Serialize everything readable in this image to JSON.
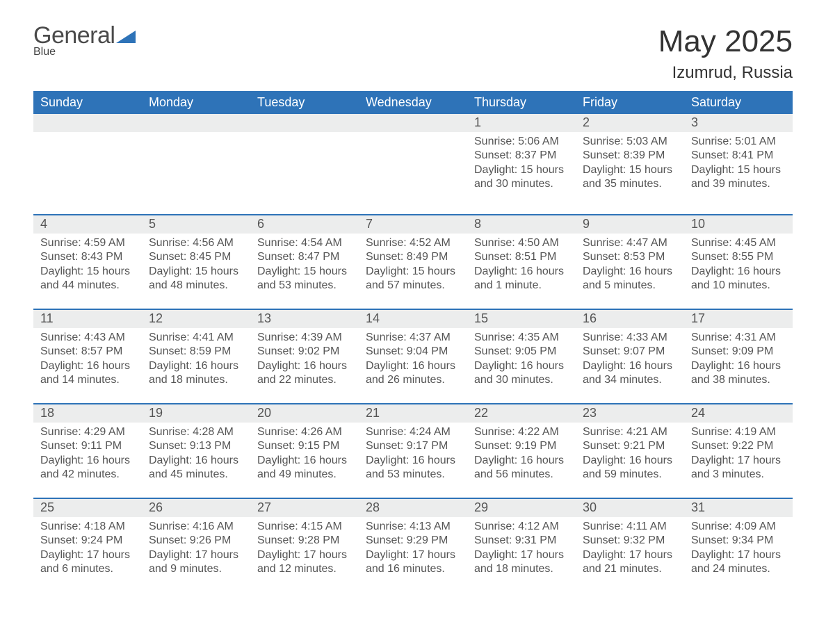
{
  "brand": {
    "general": "General",
    "blue": "Blue"
  },
  "title": "May 2025",
  "location": "Izumrud, Russia",
  "colors": {
    "header_bg": "#2e73b8",
    "header_text": "#ffffff",
    "daynum_bg": "#eceded",
    "body_text": "#555555",
    "page_bg": "#ffffff",
    "divider": "#2e73b8",
    "brand_blue": "#2e73b8",
    "brand_gray": "#4a4a4a"
  },
  "type": "table",
  "day_headers": [
    "Sunday",
    "Monday",
    "Tuesday",
    "Wednesday",
    "Thursday",
    "Friday",
    "Saturday"
  ],
  "weeks": [
    [
      {
        "n": "",
        "sr": "",
        "ss": "",
        "dl": ""
      },
      {
        "n": "",
        "sr": "",
        "ss": "",
        "dl": ""
      },
      {
        "n": "",
        "sr": "",
        "ss": "",
        "dl": ""
      },
      {
        "n": "",
        "sr": "",
        "ss": "",
        "dl": ""
      },
      {
        "n": "1",
        "sr": "Sunrise: 5:06 AM",
        "ss": "Sunset: 8:37 PM",
        "dl": "Daylight: 15 hours and 30 minutes."
      },
      {
        "n": "2",
        "sr": "Sunrise: 5:03 AM",
        "ss": "Sunset: 8:39 PM",
        "dl": "Daylight: 15 hours and 35 minutes."
      },
      {
        "n": "3",
        "sr": "Sunrise: 5:01 AM",
        "ss": "Sunset: 8:41 PM",
        "dl": "Daylight: 15 hours and 39 minutes."
      }
    ],
    [
      {
        "n": "4",
        "sr": "Sunrise: 4:59 AM",
        "ss": "Sunset: 8:43 PM",
        "dl": "Daylight: 15 hours and 44 minutes."
      },
      {
        "n": "5",
        "sr": "Sunrise: 4:56 AM",
        "ss": "Sunset: 8:45 PM",
        "dl": "Daylight: 15 hours and 48 minutes."
      },
      {
        "n": "6",
        "sr": "Sunrise: 4:54 AM",
        "ss": "Sunset: 8:47 PM",
        "dl": "Daylight: 15 hours and 53 minutes."
      },
      {
        "n": "7",
        "sr": "Sunrise: 4:52 AM",
        "ss": "Sunset: 8:49 PM",
        "dl": "Daylight: 15 hours and 57 minutes."
      },
      {
        "n": "8",
        "sr": "Sunrise: 4:50 AM",
        "ss": "Sunset: 8:51 PM",
        "dl": "Daylight: 16 hours and 1 minute."
      },
      {
        "n": "9",
        "sr": "Sunrise: 4:47 AM",
        "ss": "Sunset: 8:53 PM",
        "dl": "Daylight: 16 hours and 5 minutes."
      },
      {
        "n": "10",
        "sr": "Sunrise: 4:45 AM",
        "ss": "Sunset: 8:55 PM",
        "dl": "Daylight: 16 hours and 10 minutes."
      }
    ],
    [
      {
        "n": "11",
        "sr": "Sunrise: 4:43 AM",
        "ss": "Sunset: 8:57 PM",
        "dl": "Daylight: 16 hours and 14 minutes."
      },
      {
        "n": "12",
        "sr": "Sunrise: 4:41 AM",
        "ss": "Sunset: 8:59 PM",
        "dl": "Daylight: 16 hours and 18 minutes."
      },
      {
        "n": "13",
        "sr": "Sunrise: 4:39 AM",
        "ss": "Sunset: 9:02 PM",
        "dl": "Daylight: 16 hours and 22 minutes."
      },
      {
        "n": "14",
        "sr": "Sunrise: 4:37 AM",
        "ss": "Sunset: 9:04 PM",
        "dl": "Daylight: 16 hours and 26 minutes."
      },
      {
        "n": "15",
        "sr": "Sunrise: 4:35 AM",
        "ss": "Sunset: 9:05 PM",
        "dl": "Daylight: 16 hours and 30 minutes."
      },
      {
        "n": "16",
        "sr": "Sunrise: 4:33 AM",
        "ss": "Sunset: 9:07 PM",
        "dl": "Daylight: 16 hours and 34 minutes."
      },
      {
        "n": "17",
        "sr": "Sunrise: 4:31 AM",
        "ss": "Sunset: 9:09 PM",
        "dl": "Daylight: 16 hours and 38 minutes."
      }
    ],
    [
      {
        "n": "18",
        "sr": "Sunrise: 4:29 AM",
        "ss": "Sunset: 9:11 PM",
        "dl": "Daylight: 16 hours and 42 minutes."
      },
      {
        "n": "19",
        "sr": "Sunrise: 4:28 AM",
        "ss": "Sunset: 9:13 PM",
        "dl": "Daylight: 16 hours and 45 minutes."
      },
      {
        "n": "20",
        "sr": "Sunrise: 4:26 AM",
        "ss": "Sunset: 9:15 PM",
        "dl": "Daylight: 16 hours and 49 minutes."
      },
      {
        "n": "21",
        "sr": "Sunrise: 4:24 AM",
        "ss": "Sunset: 9:17 PM",
        "dl": "Daylight: 16 hours and 53 minutes."
      },
      {
        "n": "22",
        "sr": "Sunrise: 4:22 AM",
        "ss": "Sunset: 9:19 PM",
        "dl": "Daylight: 16 hours and 56 minutes."
      },
      {
        "n": "23",
        "sr": "Sunrise: 4:21 AM",
        "ss": "Sunset: 9:21 PM",
        "dl": "Daylight: 16 hours and 59 minutes."
      },
      {
        "n": "24",
        "sr": "Sunrise: 4:19 AM",
        "ss": "Sunset: 9:22 PM",
        "dl": "Daylight: 17 hours and 3 minutes."
      }
    ],
    [
      {
        "n": "25",
        "sr": "Sunrise: 4:18 AM",
        "ss": "Sunset: 9:24 PM",
        "dl": "Daylight: 17 hours and 6 minutes."
      },
      {
        "n": "26",
        "sr": "Sunrise: 4:16 AM",
        "ss": "Sunset: 9:26 PM",
        "dl": "Daylight: 17 hours and 9 minutes."
      },
      {
        "n": "27",
        "sr": "Sunrise: 4:15 AM",
        "ss": "Sunset: 9:28 PM",
        "dl": "Daylight: 17 hours and 12 minutes."
      },
      {
        "n": "28",
        "sr": "Sunrise: 4:13 AM",
        "ss": "Sunset: 9:29 PM",
        "dl": "Daylight: 17 hours and 16 minutes."
      },
      {
        "n": "29",
        "sr": "Sunrise: 4:12 AM",
        "ss": "Sunset: 9:31 PM",
        "dl": "Daylight: 17 hours and 18 minutes."
      },
      {
        "n": "30",
        "sr": "Sunrise: 4:11 AM",
        "ss": "Sunset: 9:32 PM",
        "dl": "Daylight: 17 hours and 21 minutes."
      },
      {
        "n": "31",
        "sr": "Sunrise: 4:09 AM",
        "ss": "Sunset: 9:34 PM",
        "dl": "Daylight: 17 hours and 24 minutes."
      }
    ]
  ]
}
